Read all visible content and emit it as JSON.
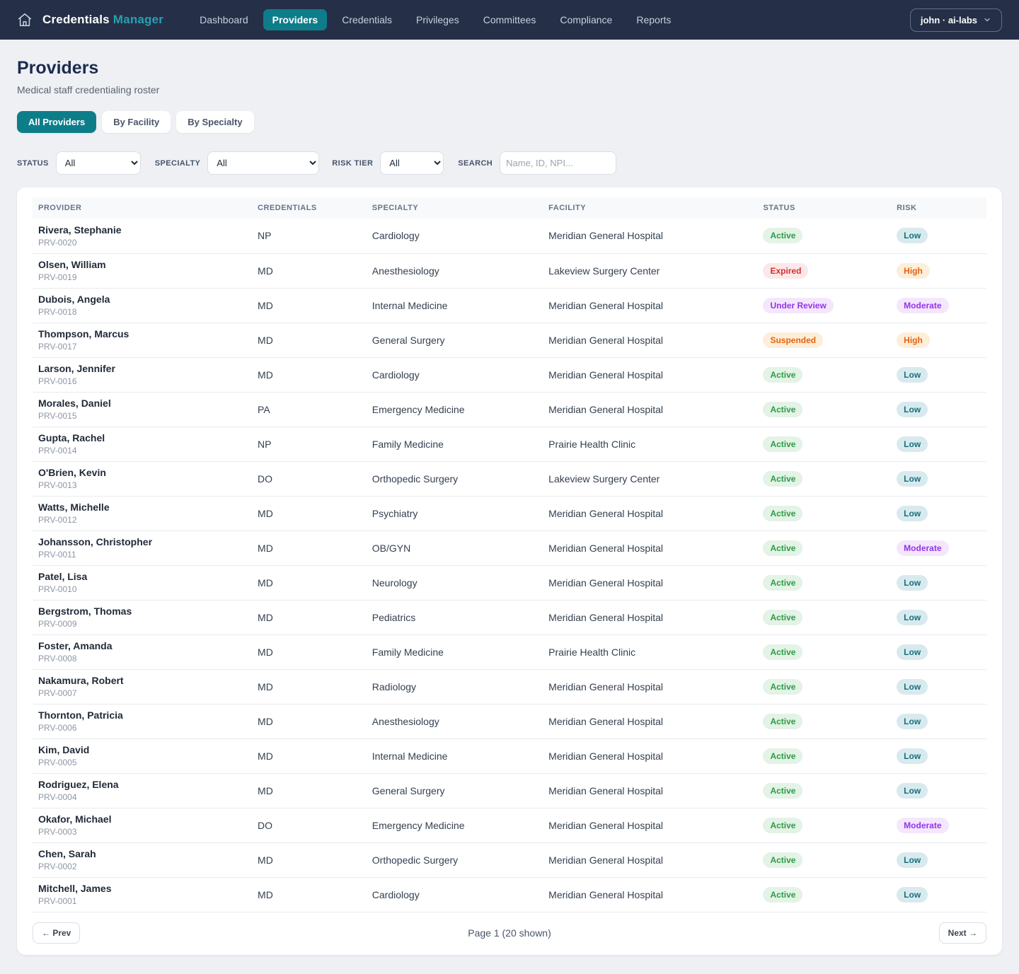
{
  "navbar": {
    "brand_primary": "Credentials",
    "brand_accent": "Manager",
    "items": [
      {
        "label": "Dashboard",
        "active": false
      },
      {
        "label": "Providers",
        "active": true
      },
      {
        "label": "Credentials",
        "active": false
      },
      {
        "label": "Privileges",
        "active": false
      },
      {
        "label": "Committees",
        "active": false
      },
      {
        "label": "Compliance",
        "active": false
      },
      {
        "label": "Reports",
        "active": false
      }
    ],
    "user_label": "john · ai-labs"
  },
  "page": {
    "title": "Providers",
    "subtitle": "Medical staff credentialing roster",
    "tabs": [
      {
        "label": "All Providers",
        "active": true
      },
      {
        "label": "By Facility",
        "active": false
      },
      {
        "label": "By Specialty",
        "active": false
      }
    ]
  },
  "filters": {
    "status": {
      "label": "STATUS",
      "value": "All"
    },
    "specialty": {
      "label": "SPECIALTY",
      "value": "All"
    },
    "risk_tier": {
      "label": "RISK TIER",
      "value": "All"
    },
    "search": {
      "label": "SEARCH",
      "placeholder": "Name, ID, NPI..."
    }
  },
  "table": {
    "columns": [
      "PROVIDER",
      "CREDENTIALS",
      "SPECIALTY",
      "FACILITY",
      "STATUS",
      "RISK"
    ],
    "badge_colors": {
      "Active": {
        "bg": "#e3f3e6",
        "fg": "#2e9b47"
      },
      "Expired": {
        "bg": "#fce8e8",
        "fg": "#d92d2d"
      },
      "Under Review": {
        "bg": "#f4e7fc",
        "fg": "#9333ea"
      },
      "Suspended": {
        "bg": "#fdeeda",
        "fg": "#e8610c"
      },
      "Low": {
        "bg": "#d9eaee",
        "fg": "#15707e"
      },
      "Moderate": {
        "bg": "#f4e7fc",
        "fg": "#9333ea"
      },
      "High": {
        "bg": "#fdeeda",
        "fg": "#e8610c"
      }
    },
    "rows": [
      {
        "name": "Rivera, Stephanie",
        "id": "PRV-0020",
        "credentials": "NP",
        "specialty": "Cardiology",
        "facility": "Meridian General Hospital",
        "status": "Active",
        "risk": "Low"
      },
      {
        "name": "Olsen, William",
        "id": "PRV-0019",
        "credentials": "MD",
        "specialty": "Anesthesiology",
        "facility": "Lakeview Surgery Center",
        "status": "Expired",
        "risk": "High"
      },
      {
        "name": "Dubois, Angela",
        "id": "PRV-0018",
        "credentials": "MD",
        "specialty": "Internal Medicine",
        "facility": "Meridian General Hospital",
        "status": "Under Review",
        "risk": "Moderate"
      },
      {
        "name": "Thompson, Marcus",
        "id": "PRV-0017",
        "credentials": "MD",
        "specialty": "General Surgery",
        "facility": "Meridian General Hospital",
        "status": "Suspended",
        "risk": "High"
      },
      {
        "name": "Larson, Jennifer",
        "id": "PRV-0016",
        "credentials": "MD",
        "specialty": "Cardiology",
        "facility": "Meridian General Hospital",
        "status": "Active",
        "risk": "Low"
      },
      {
        "name": "Morales, Daniel",
        "id": "PRV-0015",
        "credentials": "PA",
        "specialty": "Emergency Medicine",
        "facility": "Meridian General Hospital",
        "status": "Active",
        "risk": "Low"
      },
      {
        "name": "Gupta, Rachel",
        "id": "PRV-0014",
        "credentials": "NP",
        "specialty": "Family Medicine",
        "facility": "Prairie Health Clinic",
        "status": "Active",
        "risk": "Low"
      },
      {
        "name": "O'Brien, Kevin",
        "id": "PRV-0013",
        "credentials": "DO",
        "specialty": "Orthopedic Surgery",
        "facility": "Lakeview Surgery Center",
        "status": "Active",
        "risk": "Low"
      },
      {
        "name": "Watts, Michelle",
        "id": "PRV-0012",
        "credentials": "MD",
        "specialty": "Psychiatry",
        "facility": "Meridian General Hospital",
        "status": "Active",
        "risk": "Low"
      },
      {
        "name": "Johansson, Christopher",
        "id": "PRV-0011",
        "credentials": "MD",
        "specialty": "OB/GYN",
        "facility": "Meridian General Hospital",
        "status": "Active",
        "risk": "Moderate"
      },
      {
        "name": "Patel, Lisa",
        "id": "PRV-0010",
        "credentials": "MD",
        "specialty": "Neurology",
        "facility": "Meridian General Hospital",
        "status": "Active",
        "risk": "Low"
      },
      {
        "name": "Bergstrom, Thomas",
        "id": "PRV-0009",
        "credentials": "MD",
        "specialty": "Pediatrics",
        "facility": "Meridian General Hospital",
        "status": "Active",
        "risk": "Low"
      },
      {
        "name": "Foster, Amanda",
        "id": "PRV-0008",
        "credentials": "MD",
        "specialty": "Family Medicine",
        "facility": "Prairie Health Clinic",
        "status": "Active",
        "risk": "Low"
      },
      {
        "name": "Nakamura, Robert",
        "id": "PRV-0007",
        "credentials": "MD",
        "specialty": "Radiology",
        "facility": "Meridian General Hospital",
        "status": "Active",
        "risk": "Low"
      },
      {
        "name": "Thornton, Patricia",
        "id": "PRV-0006",
        "credentials": "MD",
        "specialty": "Anesthesiology",
        "facility": "Meridian General Hospital",
        "status": "Active",
        "risk": "Low"
      },
      {
        "name": "Kim, David",
        "id": "PRV-0005",
        "credentials": "MD",
        "specialty": "Internal Medicine",
        "facility": "Meridian General Hospital",
        "status": "Active",
        "risk": "Low"
      },
      {
        "name": "Rodriguez, Elena",
        "id": "PRV-0004",
        "credentials": "MD",
        "specialty": "General Surgery",
        "facility": "Meridian General Hospital",
        "status": "Active",
        "risk": "Low"
      },
      {
        "name": "Okafor, Michael",
        "id": "PRV-0003",
        "credentials": "DO",
        "specialty": "Emergency Medicine",
        "facility": "Meridian General Hospital",
        "status": "Active",
        "risk": "Moderate"
      },
      {
        "name": "Chen, Sarah",
        "id": "PRV-0002",
        "credentials": "MD",
        "specialty": "Orthopedic Surgery",
        "facility": "Meridian General Hospital",
        "status": "Active",
        "risk": "Low"
      },
      {
        "name": "Mitchell, James",
        "id": "PRV-0001",
        "credentials": "MD",
        "specialty": "Cardiology",
        "facility": "Meridian General Hospital",
        "status": "Active",
        "risk": "Low"
      }
    ]
  },
  "pagination": {
    "prev_label": "← Prev",
    "info": "Page 1 (20 shown)",
    "next_label": "Next →"
  },
  "colors": {
    "navbar_bg": "#253048",
    "accent_teal": "#0e7d8a",
    "page_bg": "#eef0f4"
  }
}
